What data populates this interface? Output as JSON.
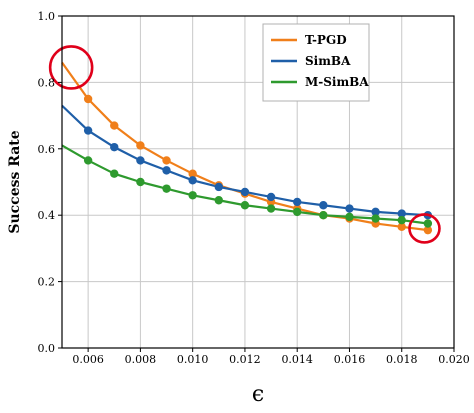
{
  "chart_data": {
    "type": "line",
    "ylabel": "Success Rate",
    "xlabel": "ϵ",
    "xlim": [
      0.005,
      0.02
    ],
    "ylim": [
      0.0,
      1.0
    ],
    "grid": true,
    "legend_position": "top-right",
    "x_ticks": [
      "0.006",
      "0.008",
      "0.010",
      "0.012",
      "0.014",
      "0.016",
      "0.018",
      "0.020"
    ],
    "y_ticks": [
      "0.0",
      "0.2",
      "0.4",
      "0.6",
      "0.8",
      "1.0"
    ],
    "x": [
      0.005,
      0.006,
      0.007,
      0.008,
      0.009,
      0.01,
      0.011,
      0.012,
      0.013,
      0.014,
      0.015,
      0.016,
      0.017,
      0.018,
      0.019
    ],
    "series": [
      {
        "name": "T-PGD",
        "color": "#f07f1a",
        "values": [
          0.86,
          0.75,
          0.67,
          0.61,
          0.565,
          0.525,
          0.49,
          0.465,
          0.44,
          0.42,
          0.4,
          0.39,
          0.375,
          0.365,
          0.355
        ]
      },
      {
        "name": "SimBA",
        "color": "#1f5fa8",
        "values": [
          0.73,
          0.655,
          0.605,
          0.565,
          0.535,
          0.505,
          0.485,
          0.47,
          0.455,
          0.44,
          0.43,
          0.42,
          0.41,
          0.405,
          0.4
        ]
      },
      {
        "name": "M-SimBA",
        "color": "#2e9a2e",
        "values": [
          0.61,
          0.565,
          0.525,
          0.5,
          0.48,
          0.46,
          0.445,
          0.43,
          0.42,
          0.41,
          0.4,
          0.395,
          0.39,
          0.385,
          0.375
        ]
      }
    ],
    "annotations": [
      {
        "shape": "circle",
        "color": "#e0001a",
        "x": 0.00535,
        "y": 0.845
      },
      {
        "shape": "circle",
        "color": "#e0001a",
        "x": 0.01887,
        "y": 0.36
      }
    ]
  }
}
